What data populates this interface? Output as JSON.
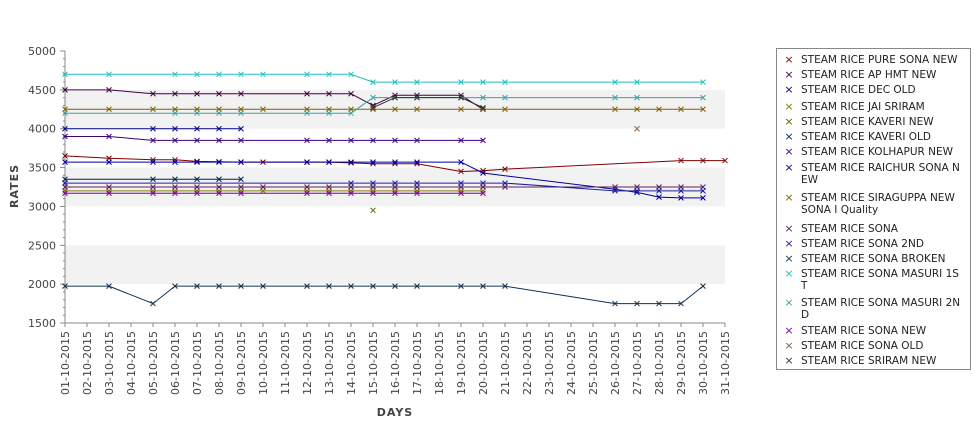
{
  "chart_data": {
    "type": "line",
    "xlabel": "DAYS",
    "ylabel": "RATES",
    "ylim": [
      1500,
      5000
    ],
    "yticks": [
      1500,
      2000,
      2500,
      3000,
      3500,
      4000,
      4500,
      5000
    ],
    "grid_bands": true,
    "legend_position": "right",
    "x": [
      "01-10-2015",
      "02-10-2015",
      "03-10-2015",
      "04-10-2015",
      "05-10-2015",
      "06-10-2015",
      "07-10-2015",
      "08-10-2015",
      "09-10-2015",
      "10-10-2015",
      "11-10-2015",
      "12-10-2015",
      "13-10-2015",
      "14-10-2015",
      "15-10-2015",
      "16-10-2015",
      "17-10-2015",
      "18-10-2015",
      "19-10-2015",
      "20-10-2015",
      "21-10-2015",
      "22-10-2015",
      "23-10-2015",
      "24-10-2015",
      "25-10-2015",
      "26-10-2015",
      "27-10-2015",
      "28-10-2015",
      "29-10-2015",
      "30-10-2015",
      "31-10-2015"
    ],
    "series": [
      {
        "name": " STEAM RICE PURE SONA NEW",
        "color": "#800000",
        "points": [
          [
            1,
            3650
          ],
          [
            3,
            3620
          ],
          [
            5,
            3600
          ],
          [
            6,
            3600
          ],
          [
            7,
            3580
          ],
          [
            8,
            3575
          ],
          [
            9,
            3570
          ],
          [
            10,
            3570
          ],
          [
            12,
            3570
          ],
          [
            13,
            3570
          ],
          [
            14,
            3560
          ],
          [
            15,
            3550
          ],
          [
            16,
            3550
          ],
          [
            17,
            3550
          ],
          [
            19,
            3450
          ],
          [
            20,
            3460
          ],
          [
            21,
            3480
          ],
          [
            29,
            3590
          ],
          [
            30,
            3590
          ],
          [
            31,
            3590
          ]
        ]
      },
      {
        "name": "STEAM RICE AP HMT NEW",
        "color": "#400040",
        "points": [
          [
            1,
            4500
          ],
          [
            3,
            4500
          ],
          [
            5,
            4450
          ],
          [
            6,
            4450
          ],
          [
            7,
            4450
          ],
          [
            8,
            4450
          ],
          [
            9,
            4450
          ],
          [
            12,
            4450
          ],
          [
            13,
            4450
          ],
          [
            14,
            4450
          ],
          [
            15,
            4300
          ],
          [
            16,
            4430
          ],
          [
            17,
            4430
          ],
          [
            19,
            4430
          ],
          [
            20,
            4250
          ]
        ]
      },
      {
        "name": "STEAM RICE DEC OLD",
        "color": "#000080",
        "points": [
          [
            1,
            4000
          ],
          [
            5,
            4000
          ],
          [
            6,
            4000
          ],
          [
            7,
            4000
          ],
          [
            8,
            4000
          ],
          [
            9,
            4000
          ]
        ]
      },
      {
        "name": "STEAM RICE JAI SRIRAM",
        "color": "#808000",
        "points": [
          [
            1,
            3200
          ],
          [
            3,
            3200
          ],
          [
            5,
            3200
          ],
          [
            6,
            3200
          ],
          [
            7,
            3200
          ],
          [
            8,
            3200
          ],
          [
            9,
            3200
          ],
          [
            10,
            3200
          ],
          [
            12,
            3200
          ],
          [
            13,
            3200
          ],
          [
            14,
            3200
          ],
          [
            15,
            3200
          ],
          [
            16,
            3200
          ],
          [
            17,
            3200
          ],
          [
            19,
            3200
          ],
          [
            20,
            3200
          ]
        ]
      },
      {
        "name": "STEAM RICE KAVERI NEW",
        "color": "#606000",
        "points": [
          [
            15,
            2950
          ]
        ]
      },
      {
        "name": "STEAM RICE KAVERI OLD",
        "color": "#002050",
        "points": [
          [
            1,
            3350
          ],
          [
            5,
            3350
          ],
          [
            6,
            3350
          ],
          [
            7,
            3350
          ],
          [
            8,
            3350
          ],
          [
            9,
            3350
          ]
        ]
      },
      {
        "name": "STEAM RICE KOLHAPUR NEW",
        "color": "#400080",
        "points": [
          [
            1,
            3900
          ],
          [
            3,
            3900
          ],
          [
            5,
            3850
          ],
          [
            6,
            3850
          ],
          [
            7,
            3850
          ],
          [
            8,
            3850
          ],
          [
            9,
            3850
          ],
          [
            12,
            3850
          ],
          [
            13,
            3850
          ],
          [
            14,
            3850
          ],
          [
            15,
            3850
          ],
          [
            16,
            3850
          ],
          [
            17,
            3850
          ],
          [
            19,
            3850
          ],
          [
            20,
            3850
          ]
        ]
      },
      {
        "name": "STEAM RICE RAICHUR SONA NEW",
        "color": "#0000a0",
        "points": [
          [
            1,
            3570
          ],
          [
            3,
            3570
          ],
          [
            5,
            3570
          ],
          [
            6,
            3570
          ],
          [
            7,
            3570
          ],
          [
            8,
            3570
          ],
          [
            9,
            3570
          ],
          [
            12,
            3570
          ],
          [
            13,
            3570
          ],
          [
            14,
            3570
          ],
          [
            15,
            3570
          ],
          [
            16,
            3570
          ],
          [
            17,
            3570
          ],
          [
            19,
            3570
          ],
          [
            20,
            3430
          ],
          [
            26,
            3220
          ],
          [
            27,
            3180
          ],
          [
            28,
            3120
          ],
          [
            29,
            3110
          ],
          [
            30,
            3110
          ]
        ]
      },
      {
        "name": "STEAM RICE SIRAGUPPA NEW SONA I Quality",
        "color": "#806000",
        "points": [
          [
            1,
            4250
          ],
          [
            3,
            4250
          ],
          [
            5,
            4250
          ],
          [
            6,
            4250
          ],
          [
            7,
            4250
          ],
          [
            8,
            4250
          ],
          [
            9,
            4250
          ],
          [
            10,
            4250
          ],
          [
            12,
            4250
          ],
          [
            13,
            4250
          ],
          [
            14,
            4250
          ],
          [
            15,
            4250
          ],
          [
            16,
            4250
          ],
          [
            17,
            4250
          ],
          [
            19,
            4250
          ],
          [
            20,
            4250
          ],
          [
            21,
            4250
          ],
          [
            26,
            4250
          ],
          [
            27,
            4250
          ],
          [
            28,
            4250
          ],
          [
            29,
            4250
          ],
          [
            30,
            4250
          ]
        ]
      },
      {
        "name": "STEAM RICE SONA",
        "color": "#602060",
        "points": [
          [
            1,
            3250
          ],
          [
            3,
            3250
          ],
          [
            5,
            3250
          ],
          [
            6,
            3250
          ],
          [
            7,
            3250
          ],
          [
            8,
            3250
          ],
          [
            9,
            3250
          ],
          [
            10,
            3250
          ],
          [
            12,
            3250
          ],
          [
            13,
            3250
          ],
          [
            14,
            3250
          ],
          [
            15,
            3250
          ],
          [
            16,
            3250
          ],
          [
            17,
            3250
          ],
          [
            19,
            3250
          ],
          [
            20,
            3250
          ],
          [
            21,
            3250
          ],
          [
            26,
            3250
          ],
          [
            27,
            3250
          ],
          [
            28,
            3250
          ],
          [
            29,
            3250
          ],
          [
            30,
            3250
          ]
        ]
      },
      {
        "name": "STEAM RICE SONA 2ND",
        "color": "#2020a0",
        "points": [
          [
            1,
            3300
          ],
          [
            14,
            3300
          ],
          [
            15,
            3300
          ],
          [
            16,
            3300
          ],
          [
            17,
            3300
          ],
          [
            19,
            3300
          ],
          [
            20,
            3300
          ],
          [
            21,
            3300
          ],
          [
            26,
            3200
          ],
          [
            27,
            3200
          ],
          [
            28,
            3200
          ],
          [
            29,
            3200
          ],
          [
            30,
            3200
          ]
        ]
      },
      {
        "name": "STEAM RICE SONA BROKEN",
        "color": "#103050",
        "points": [
          [
            1,
            1975
          ],
          [
            3,
            1975
          ],
          [
            5,
            1750
          ],
          [
            6,
            1975
          ],
          [
            7,
            1975
          ],
          [
            8,
            1975
          ],
          [
            9,
            1975
          ],
          [
            10,
            1975
          ],
          [
            12,
            1975
          ],
          [
            13,
            1975
          ],
          [
            14,
            1975
          ],
          [
            15,
            1975
          ],
          [
            16,
            1975
          ],
          [
            17,
            1975
          ],
          [
            19,
            1975
          ],
          [
            20,
            1975
          ],
          [
            21,
            1975
          ],
          [
            26,
            1750
          ],
          [
            27,
            1750
          ],
          [
            28,
            1750
          ],
          [
            29,
            1750
          ],
          [
            30,
            1975
          ]
        ]
      },
      {
        "name": "STEAM RICE SONA MASURI 1ST",
        "color": "#20c0c0",
        "points": [
          [
            1,
            4700
          ],
          [
            3,
            4700
          ],
          [
            6,
            4700
          ],
          [
            7,
            4700
          ],
          [
            8,
            4700
          ],
          [
            9,
            4700
          ],
          [
            10,
            4700
          ],
          [
            12,
            4700
          ],
          [
            13,
            4700
          ],
          [
            14,
            4700
          ],
          [
            15,
            4600
          ],
          [
            16,
            4600
          ],
          [
            17,
            4600
          ],
          [
            19,
            4600
          ],
          [
            20,
            4600
          ],
          [
            21,
            4600
          ],
          [
            26,
            4600
          ],
          [
            27,
            4600
          ],
          [
            30,
            4600
          ]
        ]
      },
      {
        "name": "STEAM RICE SONA MASURI 2ND",
        "color": "#40a0a0",
        "points": [
          [
            1,
            4200
          ],
          [
            6,
            4200
          ],
          [
            7,
            4200
          ],
          [
            8,
            4200
          ],
          [
            9,
            4200
          ],
          [
            12,
            4200
          ],
          [
            13,
            4200
          ],
          [
            14,
            4200
          ],
          [
            15,
            4400
          ],
          [
            16,
            4400
          ],
          [
            17,
            4400
          ],
          [
            19,
            4400
          ],
          [
            20,
            4400
          ],
          [
            21,
            4400
          ],
          [
            26,
            4400
          ],
          [
            27,
            4400
          ],
          [
            30,
            4400
          ]
        ]
      },
      {
        "name": "STEAM RICE SONA NEW",
        "color": "#8000a0",
        "points": [
          [
            1,
            3170
          ],
          [
            3,
            3170
          ],
          [
            5,
            3170
          ],
          [
            6,
            3170
          ],
          [
            7,
            3170
          ],
          [
            8,
            3170
          ],
          [
            9,
            3170
          ],
          [
            12,
            3170
          ],
          [
            13,
            3170
          ],
          [
            14,
            3170
          ],
          [
            15,
            3170
          ],
          [
            16,
            3170
          ],
          [
            17,
            3170
          ],
          [
            19,
            3170
          ],
          [
            20,
            3170
          ]
        ]
      },
      {
        "name": "STEAM RICE SONA OLD",
        "color": "#806040",
        "points": [
          [
            27,
            4000
          ]
        ]
      },
      {
        "name": "STEAM RICE SRIRAM NEW",
        "color": "#303030",
        "points": [
          [
            15,
            4270
          ],
          [
            16,
            4400
          ],
          [
            17,
            4400
          ],
          [
            19,
            4400
          ],
          [
            20,
            4270
          ]
        ]
      }
    ]
  }
}
